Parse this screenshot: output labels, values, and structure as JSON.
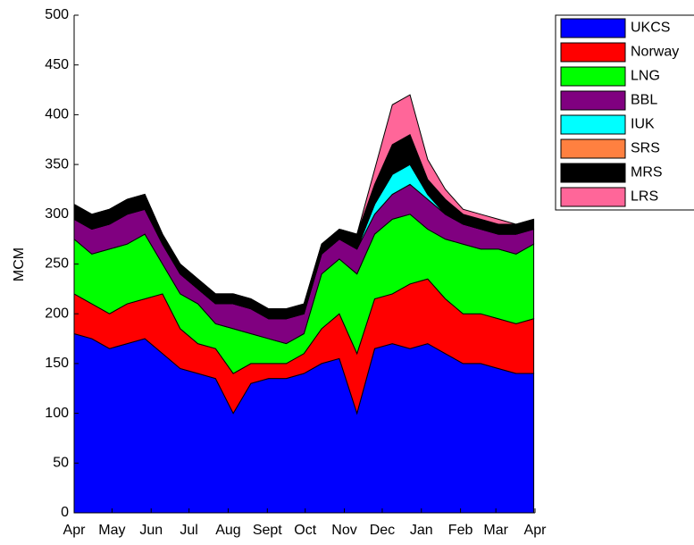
{
  "chart_data": {
    "type": "stacked_area",
    "y_label": "MCM",
    "x": [
      0,
      14,
      28,
      42,
      56,
      70,
      84,
      98,
      112,
      126,
      140,
      154,
      168,
      182,
      196,
      210,
      224,
      238,
      252,
      266,
      280,
      294,
      308,
      322,
      336,
      350,
      364
    ],
    "xlim": [
      0,
      365
    ],
    "xticks": [
      {
        "value": 0,
        "label": "Apr"
      },
      {
        "value": 30,
        "label": "May"
      },
      {
        "value": 61,
        "label": "Jun"
      },
      {
        "value": 91,
        "label": "Jul"
      },
      {
        "value": 122,
        "label": "Aug"
      },
      {
        "value": 153,
        "label": "Sept"
      },
      {
        "value": 183,
        "label": "Oct"
      },
      {
        "value": 214,
        "label": "Nov"
      },
      {
        "value": 244,
        "label": "Dec"
      },
      {
        "value": 275,
        "label": "Jan"
      },
      {
        "value": 306,
        "label": "Feb"
      },
      {
        "value": 334,
        "label": "Mar"
      },
      {
        "value": 365,
        "label": "Apr"
      }
    ],
    "ylim": [
      0,
      500
    ],
    "yticks": [
      0,
      50,
      100,
      150,
      200,
      250,
      300,
      350,
      400,
      450,
      500
    ],
    "series": [
      {
        "name": "UKCS",
        "color": "#0000ff",
        "values": [
          180,
          175,
          165,
          170,
          175,
          160,
          145,
          140,
          135,
          100,
          130,
          135,
          135,
          140,
          150,
          155,
          100,
          165,
          170,
          165,
          170,
          160,
          150,
          150,
          145,
          140,
          140
        ]
      },
      {
        "name": "Norway",
        "color": "#ff0000",
        "values": [
          40,
          35,
          35,
          40,
          40,
          60,
          40,
          30,
          30,
          40,
          20,
          15,
          15,
          20,
          35,
          45,
          60,
          50,
          50,
          65,
          65,
          55,
          50,
          50,
          50,
          50,
          55
        ]
      },
      {
        "name": "LNG",
        "color": "#00ff00",
        "values": [
          55,
          50,
          65,
          60,
          65,
          30,
          35,
          40,
          25,
          45,
          30,
          25,
          20,
          20,
          55,
          55,
          80,
          65,
          75,
          70,
          50,
          60,
          70,
          65,
          70,
          70,
          75
        ]
      },
      {
        "name": "BBL",
        "color": "#800080",
        "values": [
          20,
          25,
          25,
          30,
          25,
          20,
          20,
          15,
          20,
          25,
          25,
          20,
          25,
          20,
          20,
          20,
          25,
          20,
          25,
          30,
          30,
          25,
          20,
          20,
          15,
          20,
          15
        ]
      },
      {
        "name": "IUK",
        "color": "#00ffff",
        "values": [
          0,
          0,
          0,
          0,
          0,
          0,
          0,
          0,
          0,
          0,
          0,
          0,
          0,
          0,
          0,
          0,
          0,
          10,
          20,
          20,
          5,
          0,
          0,
          0,
          0,
          0,
          0
        ]
      },
      {
        "name": "SRS",
        "color": "#ff8040",
        "values": [
          0,
          0,
          0,
          0,
          0,
          0,
          0,
          0,
          0,
          0,
          0,
          0,
          0,
          0,
          0,
          0,
          0,
          0,
          0,
          0,
          0,
          0,
          0,
          0,
          0,
          0,
          0
        ]
      },
      {
        "name": "MRS",
        "color": "#000000",
        "values": [
          15,
          15,
          15,
          15,
          15,
          10,
          10,
          10,
          10,
          10,
          10,
          10,
          10,
          10,
          10,
          10,
          15,
          20,
          30,
          30,
          15,
          15,
          10,
          10,
          10,
          10,
          10
        ]
      },
      {
        "name": "LRS",
        "color": "#ff6699",
        "values": [
          0,
          0,
          0,
          0,
          0,
          0,
          0,
          0,
          0,
          0,
          0,
          0,
          0,
          0,
          0,
          0,
          0,
          15,
          40,
          40,
          20,
          10,
          5,
          5,
          5,
          0,
          0
        ]
      }
    ]
  }
}
